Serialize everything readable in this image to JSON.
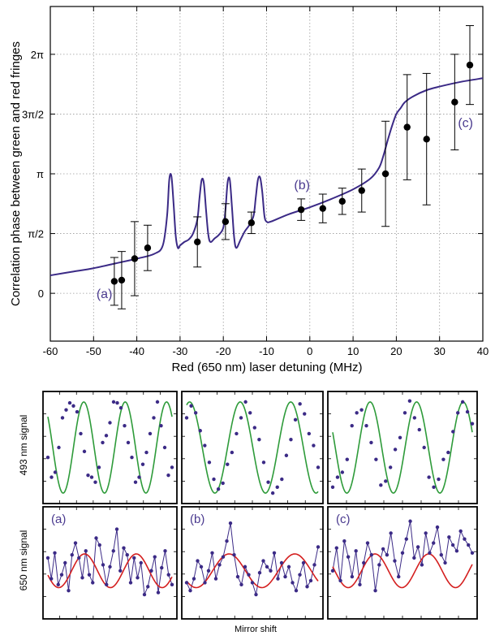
{
  "colors": {
    "fit_curve": "#3b2a86",
    "label": "#4a3a8f",
    "green_fit": "#2e9b3a",
    "red_fit": "#d41f1f",
    "dots": "#3b2a86",
    "points": "#000000",
    "axis": "#000000",
    "grid": "#9a9a9a"
  },
  "chart_data": [
    {
      "type": "scatter",
      "xlabel": "Red (650 nm) laser detuning (MHz)",
      "ylabel": "Correlation phase between green and red fringes",
      "xlim": [
        -60,
        40
      ],
      "ylim_units_of_pi": [
        -0.4,
        2.4
      ],
      "x_ticks": [
        "-60",
        "-50",
        "-40",
        "-30",
        "-20",
        "-10",
        "0",
        "10",
        "20",
        "30",
        "40"
      ],
      "y_tick_values_units_of_pi": [
        0,
        0.5,
        1,
        1.5,
        2
      ],
      "y_tick_labels": [
        "0",
        "π/2",
        "π",
        "3π/2",
        "2π"
      ],
      "grid": true,
      "points": [
        {
          "x": -45.2,
          "y": 0.1,
          "err": 0.2
        },
        {
          "x": -43.5,
          "y": 0.11,
          "err": 0.24
        },
        {
          "x": -40.5,
          "y": 0.29,
          "err": 0.31
        },
        {
          "x": -37.5,
          "y": 0.38,
          "err": 0.19
        },
        {
          "x": -26.0,
          "y": 0.43,
          "err": 0.21
        },
        {
          "x": -19.5,
          "y": 0.6,
          "err": 0.15
        },
        {
          "x": -13.5,
          "y": 0.59,
          "err": 0.09
        },
        {
          "x": -2.0,
          "y": 0.7,
          "err": 0.09
        },
        {
          "x": 3.0,
          "y": 0.71,
          "err": 0.12
        },
        {
          "x": 7.5,
          "y": 0.77,
          "err": 0.11
        },
        {
          "x": 12.0,
          "y": 0.86,
          "err": 0.18
        },
        {
          "x": 17.5,
          "y": 1.0,
          "err": 0.44
        },
        {
          "x": 22.5,
          "y": 1.39,
          "err": 0.44
        },
        {
          "x": 27.0,
          "y": 1.29,
          "err": 0.55
        },
        {
          "x": 33.5,
          "y": 1.6,
          "err": 0.4
        },
        {
          "x": 37.0,
          "y": 1.91,
          "err": 0.33
        }
      ],
      "fit_curve": {
        "x": [
          -60,
          -55,
          -50,
          -45,
          -40,
          -36,
          -34,
          -33,
          -32.5,
          -32,
          -31.5,
          -31,
          -30.5,
          -30,
          -29,
          -28,
          -27,
          -26,
          -25.5,
          -25,
          -24.5,
          -24,
          -23.5,
          -23,
          -22,
          -21,
          -20,
          -19.5,
          -19,
          -18.5,
          -18,
          -17.5,
          -17,
          -16,
          -15,
          -14,
          -13,
          -12.5,
          -12,
          -11.5,
          -11,
          -10.5,
          -10,
          -9,
          -5,
          0,
          5,
          10,
          14,
          16,
          17,
          18,
          19,
          20,
          21,
          22,
          24,
          27,
          30,
          35,
          40
        ],
        "y": [
          0.15,
          0.18,
          0.21,
          0.25,
          0.29,
          0.33,
          0.4,
          0.65,
          0.95,
          0.98,
          0.75,
          0.48,
          0.38,
          0.4,
          0.43,
          0.45,
          0.5,
          0.62,
          0.8,
          0.95,
          0.92,
          0.7,
          0.5,
          0.43,
          0.46,
          0.49,
          0.55,
          0.7,
          0.93,
          0.95,
          0.72,
          0.47,
          0.38,
          0.45,
          0.52,
          0.57,
          0.65,
          0.8,
          0.95,
          0.97,
          0.85,
          0.65,
          0.6,
          0.6,
          0.66,
          0.72,
          0.79,
          0.87,
          0.96,
          1.05,
          1.15,
          1.28,
          1.4,
          1.5,
          1.55,
          1.6,
          1.65,
          1.7,
          1.73,
          1.77,
          1.8
        ]
      },
      "annotations": [
        {
          "text": "(a)",
          "x": -47.5,
          "y": 0.0
        },
        {
          "text": "(b)",
          "x": -1.8,
          "y": 0.91
        },
        {
          "text": "(c)",
          "x": 36.0,
          "y": 1.43
        }
      ]
    },
    {
      "type": "line",
      "panel": "green",
      "ylabel": "493 nm signal",
      "xlabel": "Mirror shift",
      "subplots": [
        {
          "fit_periods": 3.0,
          "fit_phase": 2.4,
          "dots": [
            0.4,
            0.2,
            0.25,
            0.5,
            0.8,
            0.88,
            0.95,
            0.92,
            0.86,
            0.64,
            0.46,
            0.22,
            0.2,
            0.15,
            0.3,
            0.55,
            0.62,
            0.75,
            0.96,
            0.95,
            0.9,
            0.72,
            0.55,
            0.4,
            0.15,
            0.2,
            0.33,
            0.45,
            0.64,
            0.8,
            0.96,
            0.72,
            0.5,
            0.22,
            0.3
          ]
        },
        {
          "fit_periods": 2.6,
          "fit_phase": 1.2,
          "dots": [
            0.8,
            0.92,
            0.85,
            0.67,
            0.52,
            0.35,
            0.18,
            0.08,
            0.14,
            0.33,
            0.45,
            0.64,
            0.8,
            0.96,
            0.85,
            0.7,
            0.58,
            0.35,
            0.15,
            0.04,
            0.1,
            0.18,
            0.42,
            0.58,
            0.78,
            0.94,
            0.84,
            0.64,
            0.52,
            0.3
          ]
        },
        {
          "fit_periods": 3.0,
          "fit_phase": 2.8,
          "dots": [
            0.1,
            0.2,
            0.25,
            0.38,
            0.72,
            0.85,
            0.88,
            0.72,
            0.55,
            0.38,
            0.12,
            0.16,
            0.3,
            0.48,
            0.6,
            0.85,
            0.97,
            0.8,
            0.68,
            0.5,
            0.2,
            0.1,
            0.18,
            0.38,
            0.45,
            0.66,
            0.85,
            0.96,
            0.86,
            0.74
          ]
        }
      ]
    },
    {
      "type": "line",
      "panel": "red",
      "ylabel": "650 nm signal",
      "subplots": [
        {
          "label": "(a)",
          "fit_periods": 2.4,
          "fit_phase": 3.4,
          "dots": [
            0.55,
            0.34,
            0.6,
            0.28,
            0.38,
            0.5,
            0.22,
            0.58,
            0.7,
            0.55,
            0.35,
            0.62,
            0.38,
            0.3,
            0.75,
            0.68,
            0.48,
            0.28,
            0.46,
            0.62,
            0.84,
            0.42,
            0.65,
            0.58,
            0.3,
            0.55,
            0.35,
            0.5,
            0.18,
            0.26,
            0.42,
            0.56,
            0.2,
            0.45,
            0.62,
            0.38,
            0.28
          ]
        },
        {
          "label": "(b)",
          "fit_periods": 2.0,
          "fit_phase": 3.8,
          "dots": [
            0.3,
            0.22,
            0.34,
            0.52,
            0.46,
            0.3,
            0.42,
            0.6,
            0.34,
            0.48,
            0.56,
            0.72,
            0.9,
            0.58,
            0.36,
            0.28,
            0.46,
            0.38,
            0.3,
            0.18,
            0.4,
            0.52,
            0.46,
            0.42,
            0.6,
            0.34,
            0.5,
            0.36,
            0.46,
            0.3,
            0.22,
            0.38,
            0.5,
            0.26,
            0.32,
            0.48,
            0.66
          ]
        },
        {
          "label": "(c)",
          "fit_periods": 2.6,
          "fit_phase": 2.9,
          "dots": [
            0.42,
            0.65,
            0.32,
            0.72,
            0.56,
            0.36,
            0.62,
            0.28,
            0.5,
            0.7,
            0.58,
            0.22,
            0.48,
            0.64,
            0.58,
            0.8,
            0.52,
            0.36,
            0.6,
            0.74,
            0.92,
            0.55,
            0.66,
            0.48,
            0.8,
            0.6,
            0.7,
            0.86,
            0.58,
            0.5,
            0.76,
            0.68,
            0.62,
            0.82,
            0.74,
            0.68,
            0.6
          ]
        }
      ]
    }
  ]
}
